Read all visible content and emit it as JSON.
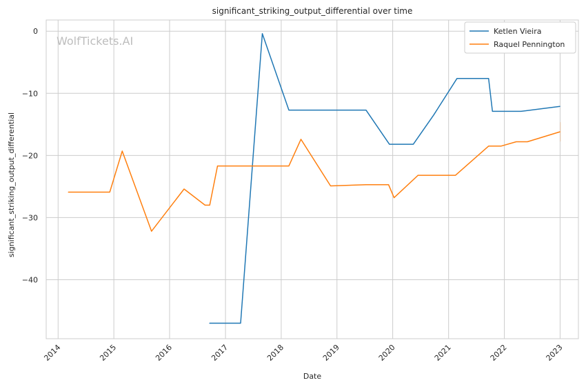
{
  "chart_data": {
    "type": "line",
    "title": "significant_striking_output_differential over time",
    "xlabel": "Date",
    "ylabel": "significant_striking_output_differential",
    "watermark": "WolfTickets.AI",
    "x_ticks": [
      "2014",
      "2015",
      "2016",
      "2017",
      "2018",
      "2019",
      "2020",
      "2021",
      "2022",
      "2023"
    ],
    "y_ticks": [
      0,
      -10,
      -20,
      -30,
      -40
    ],
    "xlim": [
      "2013-10-15",
      "2023-05-01"
    ],
    "ylim": [
      -49.5,
      1.8
    ],
    "grid": true,
    "legend_position": "top-right",
    "colors": {
      "Ketlen Vieira": "#1f77b4",
      "Raquel Pennington": "#ff7f0e"
    },
    "series": [
      {
        "name": "Ketlen Vieira",
        "color": "#1f77b4",
        "points": [
          [
            "2016-09-20",
            -47.0
          ],
          [
            "2017-04-10",
            -47.0
          ],
          [
            "2017-08-30",
            -0.4
          ],
          [
            "2018-02-20",
            -12.7
          ],
          [
            "2019-07-10",
            -12.7
          ],
          [
            "2019-12-10",
            -18.2
          ],
          [
            "2020-05-15",
            -18.2
          ],
          [
            "2020-09-25",
            -13.5
          ],
          [
            "2021-02-25",
            -7.6
          ],
          [
            "2021-09-20",
            -7.6
          ],
          [
            "2021-10-15",
            -12.9
          ],
          [
            "2022-04-20",
            -12.9
          ],
          [
            "2022-12-30",
            -12.1
          ]
        ]
      },
      {
        "name": "Raquel Pennington",
        "color": "#ff7f0e",
        "points": [
          [
            "2014-03-10",
            -25.9
          ],
          [
            "2014-12-05",
            -25.9
          ],
          [
            "2015-02-25",
            -19.3
          ],
          [
            "2015-09-05",
            -32.2
          ],
          [
            "2016-04-05",
            -25.4
          ],
          [
            "2016-08-20",
            -28.0
          ],
          [
            "2016-09-20",
            -28.0
          ],
          [
            "2016-11-10",
            -21.7
          ],
          [
            "2018-02-20",
            -21.7
          ],
          [
            "2018-05-10",
            -17.4
          ],
          [
            "2018-11-20",
            -24.9
          ],
          [
            "2019-07-10",
            -24.7
          ],
          [
            "2019-12-05",
            -24.7
          ],
          [
            "2020-01-10",
            -26.8
          ],
          [
            "2020-06-15",
            -23.2
          ],
          [
            "2021-02-15",
            -23.2
          ],
          [
            "2021-09-20",
            -18.5
          ],
          [
            "2021-12-10",
            -18.5
          ],
          [
            "2022-03-20",
            -17.8
          ],
          [
            "2022-06-01",
            -17.8
          ],
          [
            "2022-12-30",
            -16.2
          ]
        ]
      }
    ]
  }
}
